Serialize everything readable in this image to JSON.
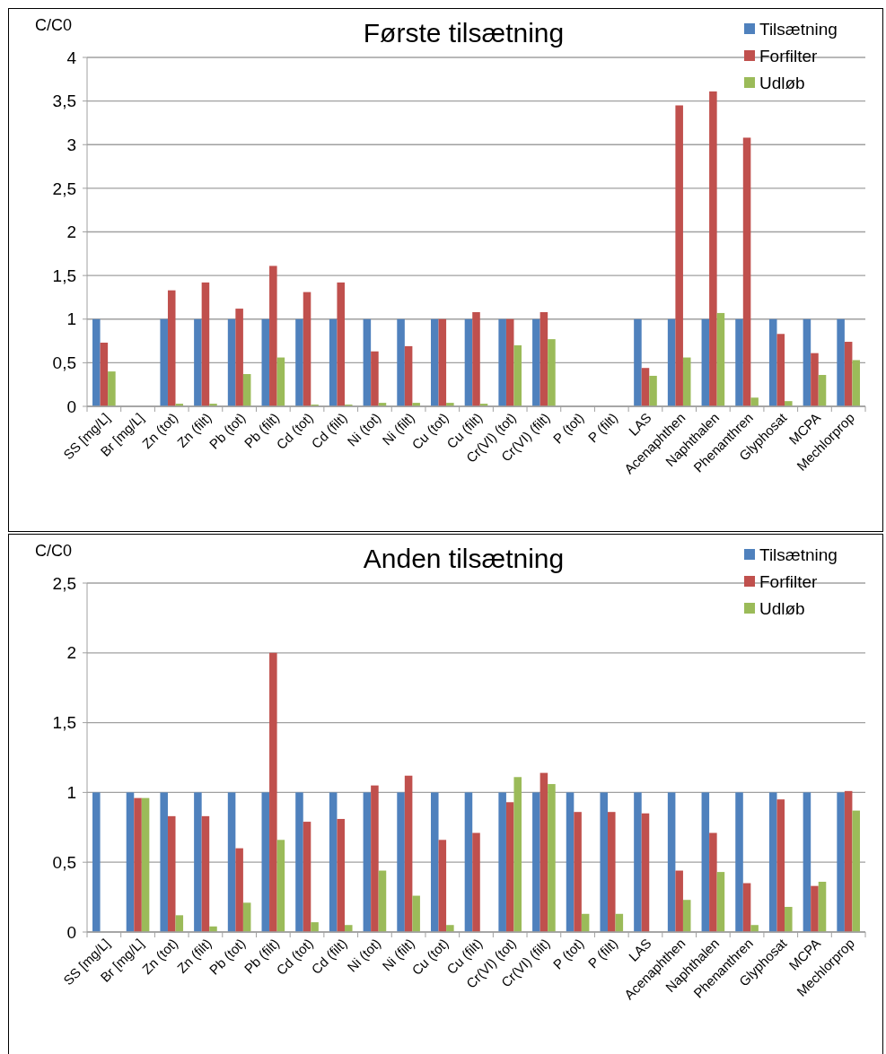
{
  "chart_data": [
    {
      "type": "bar",
      "title": "Første tilsætning",
      "ylabel": "C/C0",
      "categories": [
        "SS [mg/L]",
        "Br [mg/L]",
        "Zn (tot)",
        "Zn (filt)",
        "Pb (tot)",
        "Pb (filt)",
        "Cd (tot)",
        "Cd (filt)",
        "Ni (tot)",
        "Ni (filt)",
        "Cu (tot)",
        "Cu (filt)",
        "Cr(VI) (tot)",
        "Cr(VI) (filt)",
        "P (tot)",
        "P (filt)",
        "LAS",
        "Acenaphthen",
        "Naphthalen",
        "Phenanthren",
        "Glyphosat",
        "MCPA",
        "Mechlorprop"
      ],
      "series": [
        {
          "name": "Tilsætning",
          "color": "#4f81bd",
          "values": [
            1,
            null,
            1,
            1,
            1,
            1,
            1,
            1,
            1,
            1,
            1,
            1,
            1,
            1,
            null,
            null,
            1,
            1,
            1,
            1,
            1,
            1,
            1
          ]
        },
        {
          "name": "Forfilter",
          "color": "#c0504d",
          "values": [
            0.73,
            null,
            1.33,
            1.42,
            1.12,
            1.61,
            1.31,
            1.42,
            0.63,
            0.69,
            1.0,
            1.08,
            1.0,
            1.08,
            null,
            null,
            0.44,
            3.45,
            3.61,
            3.08,
            0.83,
            0.61,
            0.74
          ]
        },
        {
          "name": "Udløb",
          "color": "#9bbb59",
          "values": [
            0.4,
            null,
            0.03,
            0.03,
            0.37,
            0.56,
            0.02,
            0.02,
            0.04,
            0.04,
            0.04,
            0.03,
            0.7,
            0.77,
            null,
            null,
            0.35,
            0.56,
            1.07,
            0.1,
            0.06,
            0.36,
            0.53
          ]
        }
      ],
      "ylim": [
        0,
        4
      ],
      "yticks": [
        0,
        {
          "value": 0.5,
          "label": "0,5"
        },
        1,
        {
          "value": 1.5,
          "label": "1,5"
        },
        2,
        {
          "value": 2.5,
          "label": "2,5"
        },
        3,
        {
          "value": 3.5,
          "label": "3,5"
        },
        4
      ],
      "grid": "y",
      "legend": "top right"
    },
    {
      "type": "bar",
      "title": "Anden tilsætning",
      "ylabel": "C/C0",
      "categories": [
        "SS [mg/L]",
        "Br [mg/L]",
        "Zn (tot)",
        "Zn (filt)",
        "Pb (tot)",
        "Pb (filt)",
        "Cd (tot)",
        "Cd (filt)",
        "Ni (tot)",
        "Ni (filt)",
        "Cu (tot)",
        "Cu (filt)",
        "Cr(VI) (tot)",
        "Cr(VI) (filt)",
        "P (tot)",
        "P (filt)",
        "LAS",
        "Acenaphthen",
        "Naphthalen",
        "Phenanthren",
        "Glyphosat",
        "MCPA",
        "Mechlorprop"
      ],
      "series": [
        {
          "name": "Tilsætning",
          "color": "#4f81bd",
          "values": [
            1,
            1,
            1,
            1,
            1,
            1,
            1,
            1,
            1,
            1,
            1,
            1,
            1,
            1,
            1,
            1,
            1,
            1,
            1,
            1,
            1,
            1,
            1
          ]
        },
        {
          "name": "Forfilter",
          "color": "#c0504d",
          "values": [
            null,
            0.96,
            0.83,
            0.83,
            0.6,
            2.0,
            0.79,
            0.81,
            1.05,
            1.12,
            0.66,
            0.71,
            0.93,
            1.14,
            0.86,
            0.86,
            0.85,
            0.44,
            0.71,
            0.35,
            0.95,
            0.33,
            1.01
          ]
        },
        {
          "name": "Udløb",
          "color": "#9bbb59",
          "values": [
            null,
            0.96,
            0.12,
            0.04,
            0.21,
            0.66,
            0.07,
            0.05,
            0.44,
            0.26,
            0.05,
            null,
            1.11,
            1.06,
            0.13,
            0.13,
            null,
            0.23,
            0.43,
            0.05,
            0.18,
            0.36,
            0.87
          ]
        }
      ],
      "ylim": [
        0,
        2.5
      ],
      "yticks": [
        0,
        {
          "value": 0.5,
          "label": "0,5"
        },
        1,
        {
          "value": 1.5,
          "label": "1,5"
        },
        2,
        {
          "value": 2.5,
          "label": "2,5"
        }
      ],
      "grid": "y",
      "legend": "top right"
    }
  ]
}
